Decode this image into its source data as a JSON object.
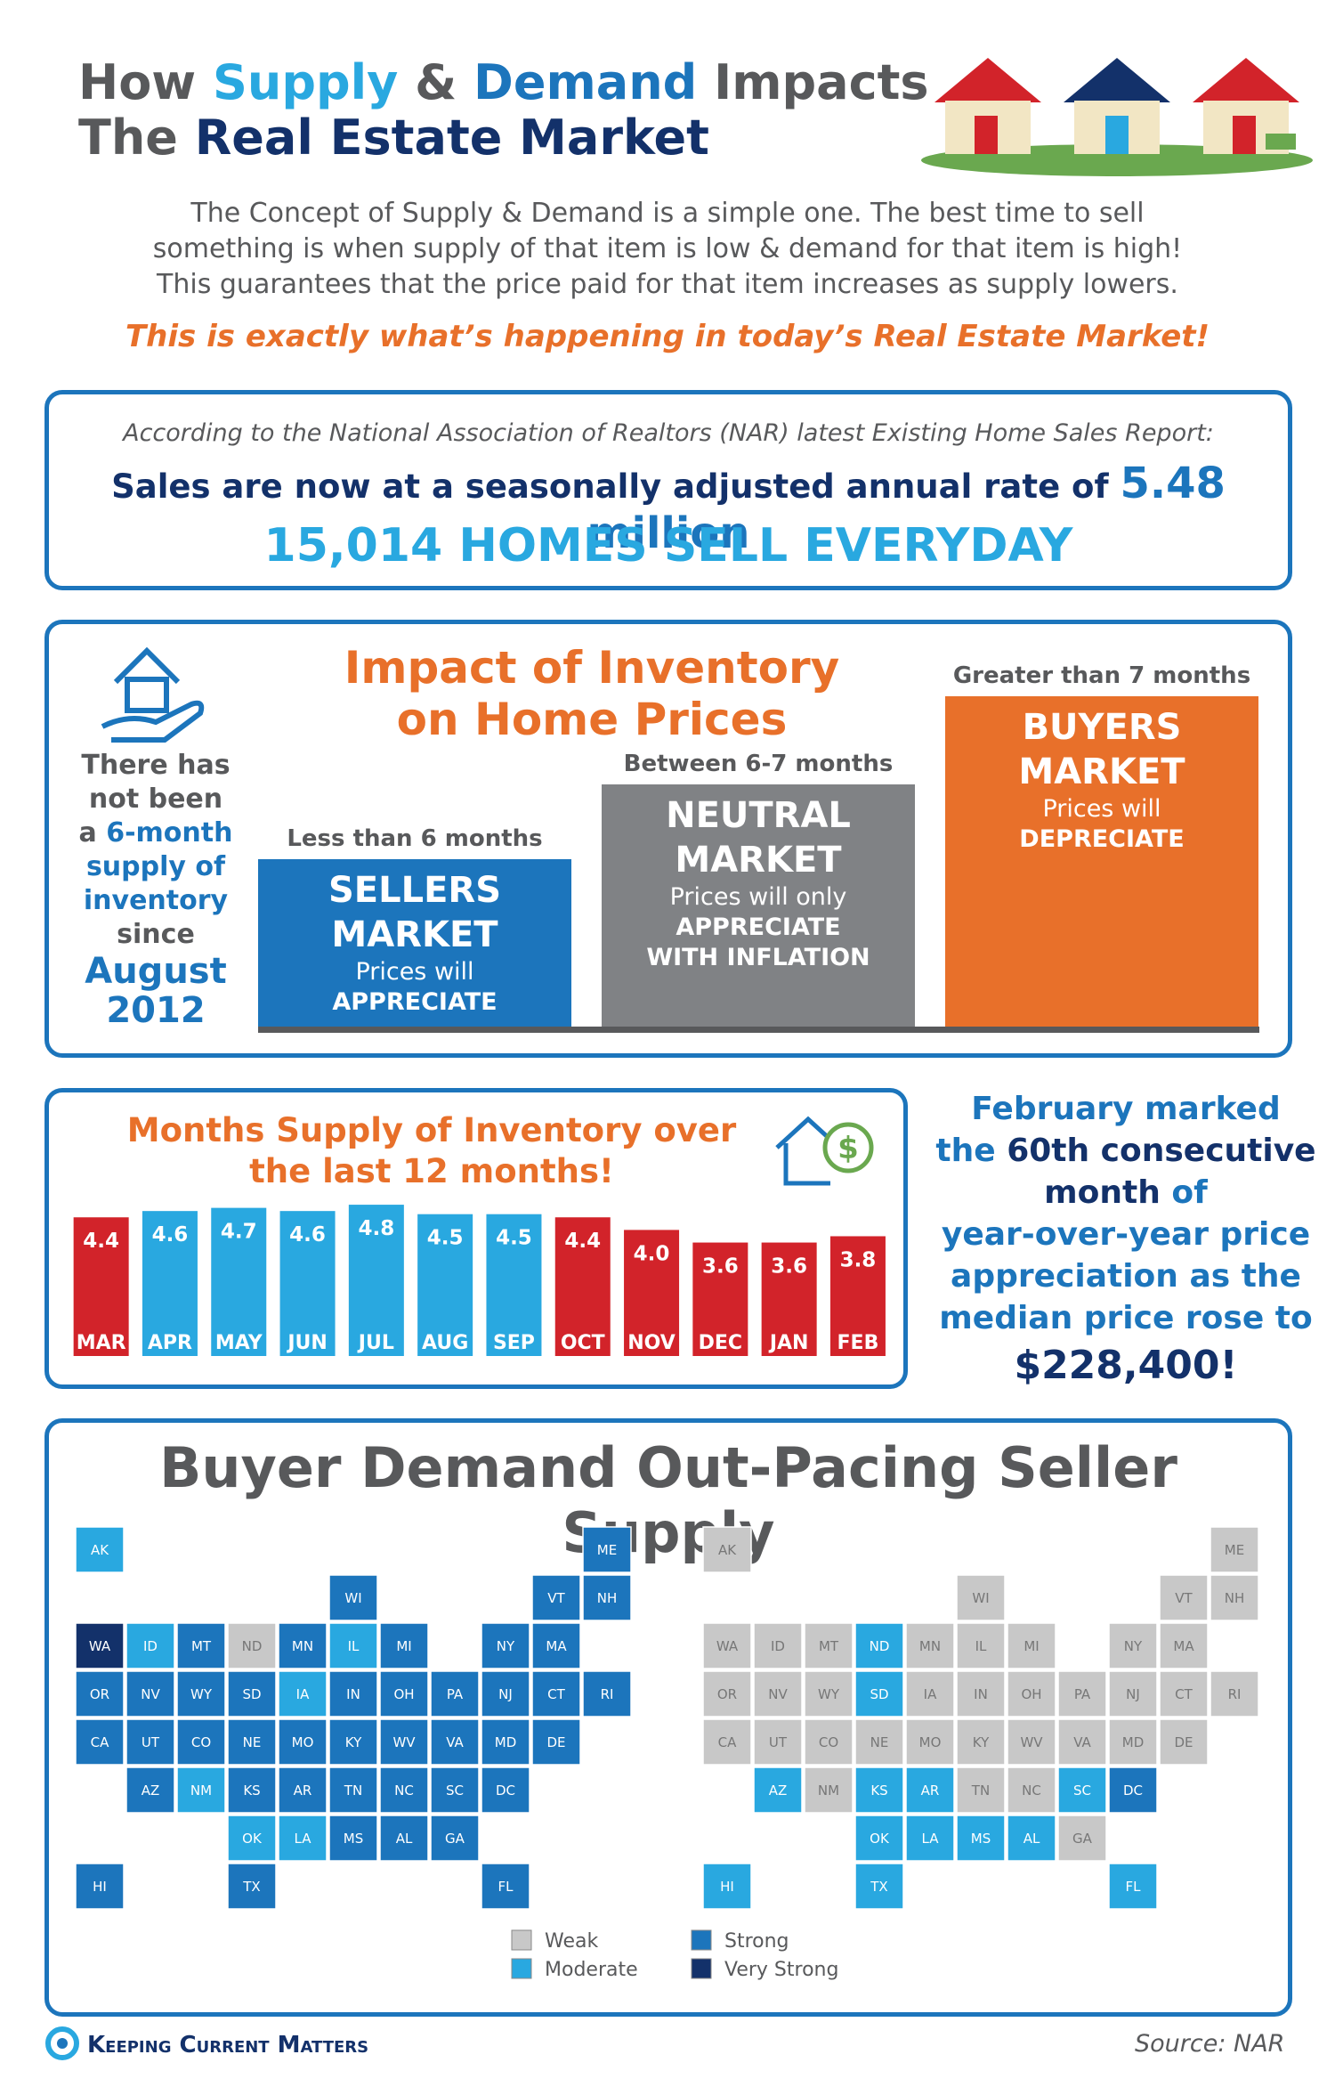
{
  "header": {
    "title": [
      [
        {
          "text": "How ",
          "color": "#58595b"
        },
        {
          "text": "Supply",
          "color": "#29a8e0"
        },
        {
          "text": " & ",
          "color": "#58595b"
        },
        {
          "text": "Demand",
          "color": "#1c75bc"
        },
        {
          "text": " Impacts",
          "color": "#58595b"
        }
      ],
      [
        {
          "text": "The ",
          "color": "#58595b"
        },
        {
          "text": "Real Estate Market",
          "color": "#13316a"
        }
      ]
    ],
    "intro": [
      "The Concept of Supply & Demand is a simple one. The best time to sell",
      "something is when supply of that item is low & demand for that item is high!",
      "This guarantees that the price paid for that item increases as supply lowers."
    ],
    "highlight": "This is exactly what’s happening in today’s Real Estate Market!"
  },
  "sales": {
    "source_line": "According to the National Association of Realtors (NAR) latest Existing Home Sales Report:",
    "rate_text": "Sales are now at a seasonally adjusted annual rate of ",
    "rate": "5.48 million",
    "daily": "15,014 HOMES SELL EVERYDAY"
  },
  "inventory": {
    "title": [
      "Impact of Inventory",
      "on Home Prices"
    ],
    "note": [
      [
        {
          "text": "There has",
          "color": "#58595b"
        }
      ],
      [
        {
          "text": "not been",
          "color": "#58595b"
        }
      ],
      [
        {
          "text": "a ",
          "color": "#58595b"
        },
        {
          "text": "6-month",
          "color": "#1c75bc"
        }
      ],
      [
        {
          "text": "supply of",
          "color": "#1c75bc"
        }
      ],
      [
        {
          "text": "inventory",
          "color": "#1c75bc"
        }
      ],
      [
        {
          "text": "since",
          "color": "#58595b"
        }
      ],
      [
        {
          "text": "August",
          "color": "#1c75bc"
        }
      ],
      [
        {
          "text": "2012",
          "color": "#1c75bc"
        }
      ]
    ],
    "markets": [
      {
        "range": "Less than 6 months",
        "name": [
          "SELLERS",
          "MARKET"
        ],
        "desc": [
          "Prices will"
        ],
        "effect": [
          "APPRECIATE"
        ],
        "color": "#1c75bc"
      },
      {
        "range": "Between 6-7 months",
        "name": [
          "NEUTRAL",
          "MARKET"
        ],
        "desc": [
          "Prices will only"
        ],
        "effect": [
          "APPRECIATE",
          "WITH INFLATION"
        ],
        "color": "#808285"
      },
      {
        "range": "Greater than 7 months",
        "name": [
          "BUYERS",
          "MARKET"
        ],
        "desc": [
          "Prices will"
        ],
        "effect": [
          "DEPRECIATE"
        ],
        "color": "#e8702a"
      }
    ]
  },
  "chart_data": {
    "type": "bar",
    "title": [
      "Months Supply of Inventory over",
      "the last 12 months!"
    ],
    "categories": [
      "MAR",
      "APR",
      "MAY",
      "JUN",
      "JUL",
      "AUG",
      "SEP",
      "OCT",
      "NOV",
      "DEC",
      "JAN",
      "FEB"
    ],
    "values": [
      4.4,
      4.6,
      4.7,
      4.6,
      4.8,
      4.5,
      4.5,
      4.4,
      4.0,
      3.6,
      3.6,
      3.8
    ],
    "value_labels": [
      "4.4",
      "4.6",
      "4.7",
      "4.6",
      "4.8",
      "4.5",
      "4.5",
      "4.4",
      "4.0",
      "3.6",
      "3.6",
      "3.8"
    ],
    "colors": [
      "#d2232a",
      "#29a8e0",
      "#29a8e0",
      "#29a8e0",
      "#29a8e0",
      "#29a8e0",
      "#29a8e0",
      "#d2232a",
      "#d2232a",
      "#d2232a",
      "#d2232a",
      "#d2232a"
    ],
    "ylim": [
      0,
      5
    ]
  },
  "price_note": [
    [
      {
        "text": "February marked",
        "color": "#1c75bc"
      }
    ],
    [
      {
        "text": "the ",
        "color": "#1c75bc"
      },
      {
        "text": "60th consecutive",
        "color": "#13316a"
      }
    ],
    [
      {
        "text": "month ",
        "color": "#13316a"
      },
      {
        "text": "of",
        "color": "#1c75bc"
      }
    ],
    [
      {
        "text": "year-over-year price",
        "color": "#1c75bc"
      }
    ],
    [
      {
        "text": "appreciation as the",
        "color": "#1c75bc"
      }
    ],
    [
      {
        "text": "median price rose to",
        "color": "#1c75bc"
      }
    ],
    [
      {
        "text": "$228,400!",
        "color": "#13316a"
      }
    ]
  ],
  "maps": {
    "title": "Buyer Demand Out-Pacing Seller Supply",
    "states": [
      "AK",
      "ME",
      "WI",
      "VT",
      "NH",
      "WA",
      "ID",
      "MT",
      "ND",
      "MN",
      "IL",
      "MI",
      "NY",
      "MA",
      "OR",
      "NV",
      "WY",
      "SD",
      "IA",
      "IN",
      "OH",
      "PA",
      "NJ",
      "CT",
      "RI",
      "CA",
      "UT",
      "CO",
      "NE",
      "MO",
      "KY",
      "WV",
      "VA",
      "MD",
      "DE",
      "AZ",
      "NM",
      "KS",
      "AR",
      "TN",
      "NC",
      "SC",
      "DC",
      "OK",
      "LA",
      "MS",
      "AL",
      "GA",
      "HI",
      "TX",
      "FL"
    ],
    "demand": [
      "Moderate",
      "Strong",
      "Strong",
      "Strong",
      "Strong",
      "Very Strong",
      "Moderate",
      "Strong",
      "Weak",
      "Strong",
      "Moderate",
      "Strong",
      "Strong",
      "Strong",
      "Strong",
      "Strong",
      "Strong",
      "Strong",
      "Moderate",
      "Strong",
      "Strong",
      "Strong",
      "Strong",
      "Strong",
      "Strong",
      "Strong",
      "Strong",
      "Strong",
      "Strong",
      "Strong",
      "Strong",
      "Strong",
      "Strong",
      "Strong",
      "Strong",
      "Strong",
      "Moderate",
      "Strong",
      "Strong",
      "Strong",
      "Strong",
      "Strong",
      "Strong",
      "Moderate",
      "Moderate",
      "Strong",
      "Strong",
      "Strong",
      "Strong",
      "Strong",
      "Strong"
    ],
    "supply": [
      "Weak",
      "Weak",
      "Weak",
      "Weak",
      "Weak",
      "Weak",
      "Weak",
      "Weak",
      "Moderate",
      "Weak",
      "Weak",
      "Weak",
      "Weak",
      "Weak",
      "Weak",
      "Weak",
      "Weak",
      "Moderate",
      "Weak",
      "Weak",
      "Weak",
      "Weak",
      "Weak",
      "Weak",
      "Weak",
      "Weak",
      "Weak",
      "Weak",
      "Weak",
      "Weak",
      "Weak",
      "Weak",
      "Weak",
      "Weak",
      "Weak",
      "Moderate",
      "Weak",
      "Moderate",
      "Moderate",
      "Weak",
      "Weak",
      "Moderate",
      "Strong",
      "Moderate",
      "Moderate",
      "Moderate",
      "Moderate",
      "Weak",
      "Moderate",
      "Moderate",
      "Moderate"
    ],
    "legend": [
      {
        "name": "Weak",
        "color": "#c8c8c8"
      },
      {
        "name": "Moderate",
        "color": "#29a8e0"
      },
      {
        "name": "Strong",
        "color": "#1c75bc"
      },
      {
        "name": "Very Strong",
        "color": "#13316a"
      }
    ]
  },
  "footer": {
    "brand": "Keeping Current Matters",
    "source": "Source: NAR"
  }
}
